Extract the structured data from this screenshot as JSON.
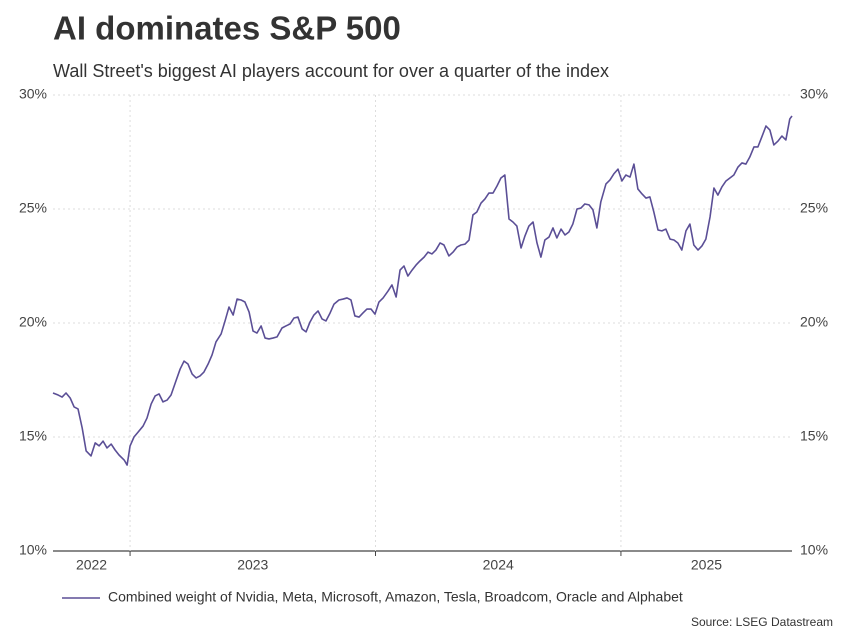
{
  "chart_data": {
    "type": "line",
    "title": "AI dominates S&P 500",
    "subtitle": "Wall Street's biggest AI players account for over a quarter of the index",
    "source": "Source: LSEG Datastream",
    "x": [
      2022.686,
      2022.707,
      2022.723,
      2022.739,
      2022.756,
      2022.772,
      2022.788,
      2022.805,
      2022.821,
      2022.841,
      2022.858,
      2022.874,
      2022.89,
      2022.906,
      2022.923,
      2022.939,
      2022.955,
      2022.976,
      2022.988,
      2023.0,
      2023.016,
      2023.033,
      2023.053,
      2023.069,
      2023.086,
      2023.102,
      2023.118,
      2023.134,
      2023.151,
      2023.167,
      2023.187,
      2023.204,
      2023.22,
      2023.236,
      2023.253,
      2023.269,
      2023.285,
      2023.301,
      2023.318,
      2023.334,
      2023.35,
      2023.371,
      2023.387,
      2023.403,
      2023.42,
      2023.436,
      2023.452,
      2023.468,
      2023.485,
      2023.501,
      2023.517,
      2023.534,
      2023.55,
      2023.566,
      2023.582,
      2023.599,
      2023.619,
      2023.635,
      2023.652,
      2023.668,
      2023.684,
      2023.701,
      2023.717,
      2023.733,
      2023.749,
      2023.766,
      2023.782,
      2023.798,
      2023.815,
      2023.831,
      2023.851,
      2023.868,
      2023.884,
      2023.9,
      2023.916,
      2023.933,
      2023.949,
      2023.965,
      2023.982,
      2023.998,
      2024.014,
      2024.031,
      2024.051,
      2024.067,
      2024.084,
      2024.1,
      2024.116,
      2024.132,
      2024.149,
      2024.165,
      2024.181,
      2024.198,
      2024.214,
      2024.23,
      2024.246,
      2024.263,
      2024.279,
      2024.299,
      2024.316,
      2024.332,
      2024.348,
      2024.365,
      2024.381,
      2024.397,
      2024.413,
      2024.43,
      2024.446,
      2024.462,
      2024.479,
      2024.495,
      2024.511,
      2024.527,
      2024.544,
      2024.56,
      2024.576,
      2024.593,
      2024.609,
      2024.625,
      2024.642,
      2024.658,
      2024.674,
      2024.69,
      2024.707,
      2024.723,
      2024.739,
      2024.756,
      2024.772,
      2024.788,
      2024.804,
      2024.821,
      2024.837,
      2024.853,
      2024.87,
      2024.886,
      2024.902,
      2024.918,
      2024.939,
      2024.955,
      2024.971,
      2024.988,
      2025.004,
      2025.02,
      2025.037,
      2025.053,
      2025.069,
      2025.086,
      2025.102,
      2025.118,
      2025.134,
      2025.151,
      2025.167,
      2025.183,
      2025.2,
      2025.216,
      2025.232,
      2025.248,
      2025.265,
      2025.281,
      2025.297,
      2025.314,
      2025.33,
      2025.346,
      2025.363,
      2025.379,
      2025.395,
      2025.411,
      2025.428,
      2025.444,
      2025.46,
      2025.477,
      2025.493,
      2025.509,
      2025.525,
      2025.542,
      2025.558,
      2025.574,
      2025.591,
      2025.607,
      2025.623,
      2025.64,
      2025.656,
      2025.672,
      2025.688,
      2025.697
    ],
    "series": [
      {
        "name": "Combined weight of Nvidia, Meta, Microsoft, Amazon, Tesla, Broadcom, Oracle and Alphabet",
        "color": "#5b4f96",
        "values": [
          16.93,
          16.84,
          16.75,
          16.93,
          16.71,
          16.32,
          16.23,
          15.39,
          14.39,
          14.17,
          14.74,
          14.61,
          14.82,
          14.52,
          14.69,
          14.43,
          14.21,
          13.99,
          13.77,
          14.61,
          15.0,
          15.22,
          15.48,
          15.83,
          16.45,
          16.8,
          16.89,
          16.54,
          16.62,
          16.84,
          17.46,
          17.98,
          18.33,
          18.2,
          17.76,
          17.59,
          17.68,
          17.85,
          18.2,
          18.6,
          19.17,
          19.52,
          20.09,
          20.7,
          20.35,
          21.05,
          21.01,
          20.92,
          20.48,
          19.65,
          19.56,
          19.87,
          19.34,
          19.3,
          19.34,
          19.39,
          19.78,
          19.87,
          19.96,
          20.22,
          20.26,
          19.74,
          19.61,
          20.04,
          20.35,
          20.53,
          20.18,
          20.09,
          20.44,
          20.83,
          21.01,
          21.05,
          21.1,
          21.01,
          20.31,
          20.26,
          20.44,
          20.61,
          20.61,
          20.39,
          20.92,
          21.1,
          21.4,
          21.67,
          21.14,
          22.32,
          22.5,
          22.06,
          22.32,
          22.54,
          22.72,
          22.89,
          23.11,
          23.03,
          23.2,
          23.51,
          23.42,
          22.94,
          23.11,
          23.33,
          23.42,
          23.46,
          23.64,
          24.74,
          24.87,
          25.26,
          25.44,
          25.7,
          25.7,
          26.01,
          26.36,
          26.49,
          24.56,
          24.43,
          24.25,
          23.29,
          23.82,
          24.25,
          24.43,
          23.51,
          22.89,
          23.64,
          23.77,
          24.17,
          23.73,
          24.12,
          23.86,
          23.99,
          24.34,
          25.0,
          25.04,
          25.22,
          25.18,
          24.96,
          24.17,
          25.31,
          26.1,
          26.27,
          26.54,
          26.75,
          26.23,
          26.49,
          26.4,
          26.97,
          25.88,
          25.66,
          25.48,
          25.53,
          24.87,
          24.08,
          24.04,
          24.12,
          23.68,
          23.64,
          23.51,
          23.2,
          24.04,
          24.34,
          23.42,
          23.2,
          23.38,
          23.68,
          24.65,
          25.92,
          25.61,
          25.96,
          26.23,
          26.36,
          26.49,
          26.84,
          27.02,
          26.97,
          27.28,
          27.72,
          27.72,
          28.16,
          28.64,
          28.46,
          27.81,
          27.98,
          28.2,
          28.03,
          28.95,
          29.08
        ]
      }
    ],
    "xlim": [
      2022.686,
      2025.697
    ],
    "xticks": [
      2022,
      2023,
      2024,
      2025
    ],
    "ylim": [
      10,
      30
    ],
    "yticks": [
      {
        "value": 10,
        "label": "10%"
      },
      {
        "value": 15,
        "label": "15%"
      },
      {
        "value": 20,
        "label": "20%"
      },
      {
        "value": 25,
        "label": "25%"
      },
      {
        "value": 30,
        "label": "30%"
      }
    ],
    "grid": true,
    "mirror_yticks": true
  }
}
